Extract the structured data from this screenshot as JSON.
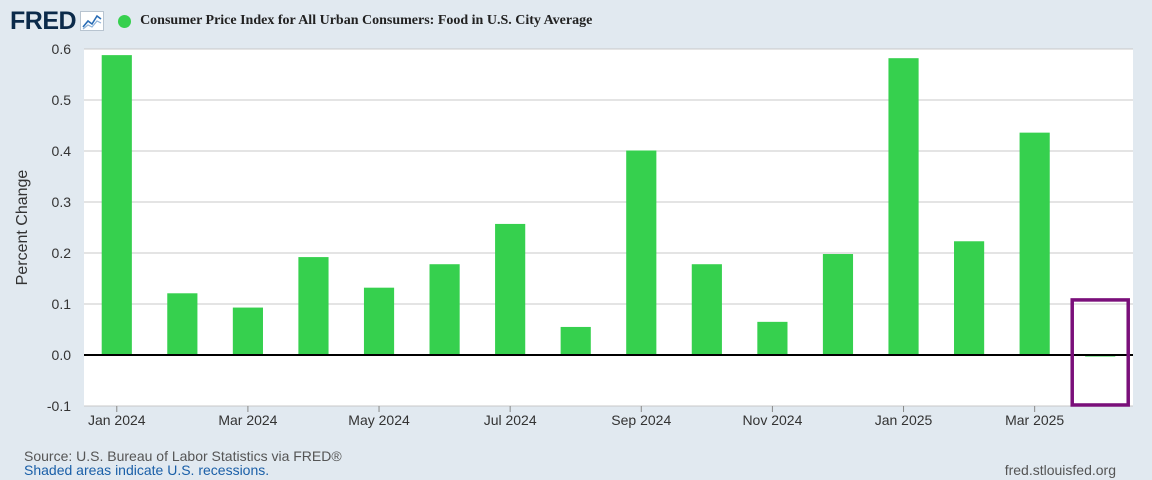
{
  "header": {
    "logo_text": "FRED",
    "logo_icon": "line-chart-icon",
    "series_title": "Consumer Price Index for All Urban Consumers: Food in U.S. City Average"
  },
  "colors": {
    "bar": "#36d04e",
    "highlight": "#7a0f7a",
    "background": "#e1e9f0",
    "plot_background": "#ffffff",
    "grid": "#c8c8c8"
  },
  "chart_data": {
    "type": "bar",
    "title": "Consumer Price Index for All Urban Consumers: Food in U.S. City Average",
    "ylabel": "Percent Change",
    "xlabel": "",
    "ylim": [
      -0.1,
      0.6
    ],
    "yticks": [
      0.6,
      0.5,
      0.4,
      0.3,
      0.2,
      0.1,
      0.0,
      -0.1
    ],
    "ytick_labels": [
      "0.6",
      "0.5",
      "0.4",
      "0.3",
      "0.2",
      "0.1",
      "0.0",
      "-0.1"
    ],
    "grid": true,
    "categories": [
      "Jan 2024",
      "Feb 2024",
      "Mar 2024",
      "Apr 2024",
      "May 2024",
      "Jun 2024",
      "Jul 2024",
      "Aug 2024",
      "Sep 2024",
      "Oct 2024",
      "Nov 2024",
      "Dec 2024",
      "Jan 2025",
      "Feb 2025",
      "Mar 2025",
      "Apr 2025"
    ],
    "values": [
      0.588,
      0.121,
      0.093,
      0.192,
      0.132,
      0.178,
      0.257,
      0.055,
      0.401,
      0.178,
      0.065,
      0.198,
      0.582,
      0.223,
      0.436,
      -0.003
    ],
    "x_tick_labels": [
      {
        "index": 0,
        "label": "Jan 2024"
      },
      {
        "index": 2,
        "label": "Mar 2024"
      },
      {
        "index": 4,
        "label": "May 2024"
      },
      {
        "index": 6,
        "label": "Jul 2024"
      },
      {
        "index": 8,
        "label": "Sep 2024"
      },
      {
        "index": 10,
        "label": "Nov 2024"
      },
      {
        "index": 12,
        "label": "Jan 2025"
      },
      {
        "index": 14,
        "label": "Mar 2025"
      }
    ],
    "highlight_index": 15
  },
  "footer": {
    "source": "Source: U.S. Bureau of Labor Statistics via FRED®",
    "recession_note": "Shaded areas indicate U.S. recessions.",
    "url": "fred.stlouisfed.org"
  }
}
